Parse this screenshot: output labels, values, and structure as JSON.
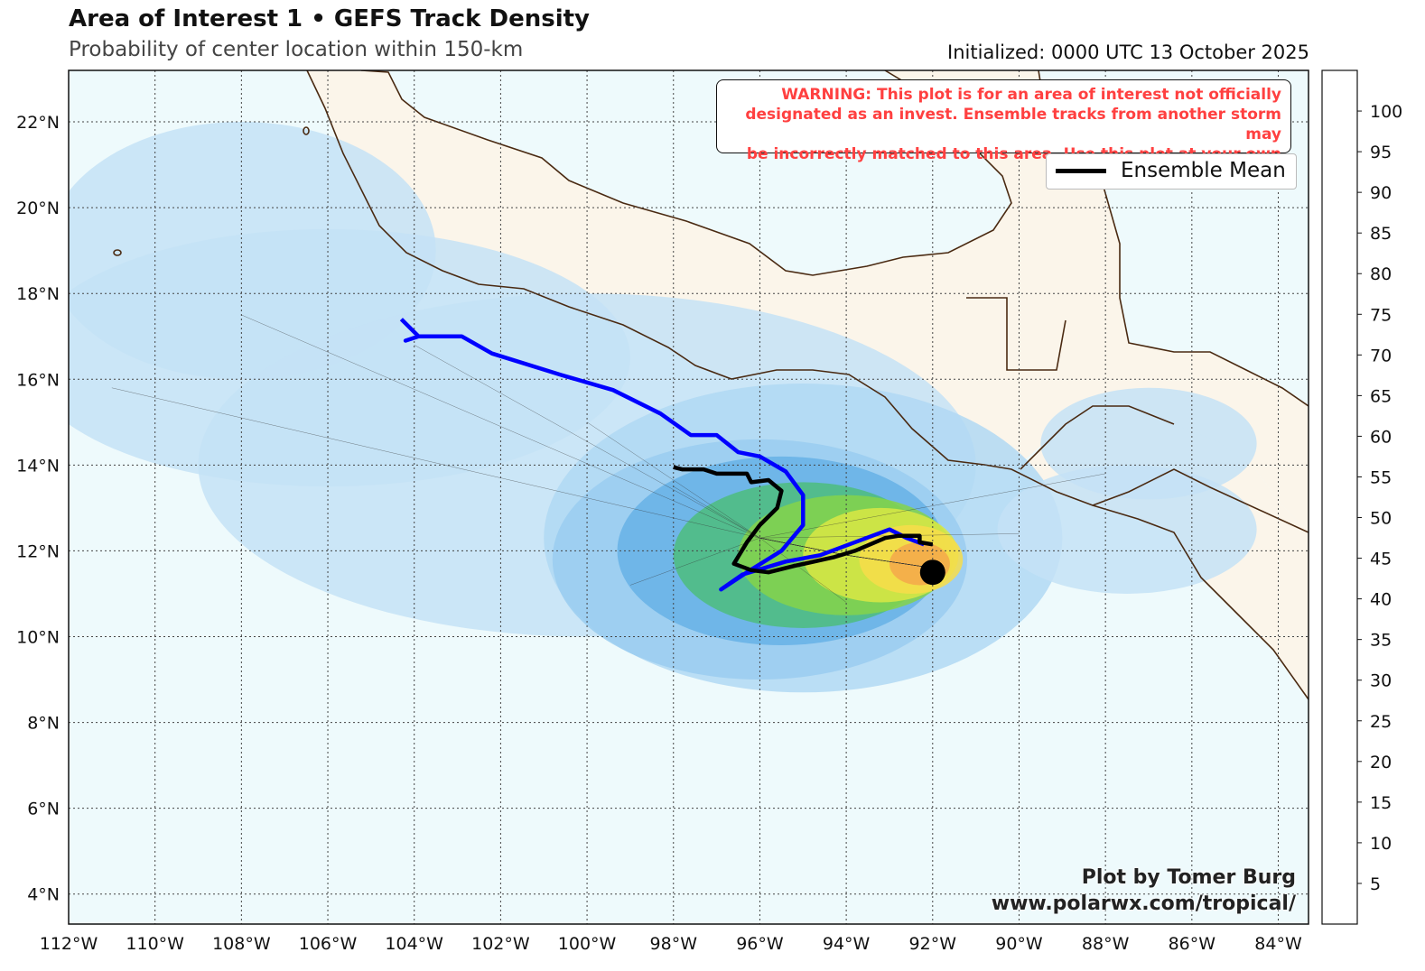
{
  "header": {
    "title": "Area of Interest 1 • GEFS Track Density",
    "subtitle": "Probability of center location within 150-km",
    "initialized": "Initialized: 0000 UTC 13 October 2025"
  },
  "warning": {
    "line1": "WARNING: This plot is for an area of interest not officially",
    "line2": "designated as an invest. Ensemble tracks from another storm may",
    "line3": "be incorrectly matched to this area. Use this plot at your own risk."
  },
  "legend": {
    "ensemble_mean_label": "Ensemble Mean"
  },
  "credit": {
    "line1": "Plot by Tomer Burg",
    "line2": "www.polarwx.com/tropical/"
  },
  "map": {
    "lon_range": [
      -112,
      -83.3
    ],
    "lat_range": [
      3.3,
      23.2
    ],
    "lon_ticks": [
      -112,
      -110,
      -108,
      -106,
      -104,
      -102,
      -100,
      -98,
      -96,
      -94,
      -92,
      -90,
      -88,
      -86,
      -84
    ],
    "lon_tick_labels": [
      "112°W",
      "110°W",
      "108°W",
      "106°W",
      "104°W",
      "102°W",
      "100°W",
      "98°W",
      "96°W",
      "94°W",
      "92°W",
      "90°W",
      "88°W",
      "86°W",
      "84°W"
    ],
    "lat_ticks": [
      4,
      6,
      8,
      10,
      12,
      14,
      16,
      18,
      20,
      22
    ],
    "lat_tick_labels": [
      "4°N",
      "6°N",
      "8°N",
      "10°N",
      "12°N",
      "14°N",
      "16°N",
      "18°N",
      "20°N",
      "22°N"
    ],
    "colors": {
      "ocean": "#eefafc",
      "land": "#fbf5ea",
      "coast": "#4a2a12",
      "grid": "#444444",
      "mean_track": "#000000",
      "op_track": "#0000ff"
    },
    "initial_position": {
      "lon": -92.0,
      "lat": 11.5
    },
    "ensemble_mean_track": [
      [
        -92.0,
        12.15
      ],
      [
        -92.3,
        12.2
      ],
      [
        -92.3,
        12.35
      ],
      [
        -92.8,
        12.35
      ],
      [
        -93.1,
        12.3
      ],
      [
        -93.8,
        12.0
      ],
      [
        -94.3,
        11.85
      ],
      [
        -95.2,
        11.65
      ],
      [
        -95.8,
        11.5
      ],
      [
        -96.2,
        11.55
      ],
      [
        -96.6,
        11.7
      ],
      [
        -96.3,
        12.2
      ],
      [
        -96.0,
        12.6
      ],
      [
        -95.6,
        13.0
      ],
      [
        -95.5,
        13.4
      ],
      [
        -95.8,
        13.65
      ],
      [
        -96.2,
        13.6
      ],
      [
        -96.3,
        13.8
      ],
      [
        -97.0,
        13.8
      ],
      [
        -97.3,
        13.9
      ],
      [
        -97.8,
        13.9
      ],
      [
        -98.0,
        13.95
      ]
    ],
    "operational_track": [
      [
        -92.2,
        12.15
      ],
      [
        -92.6,
        12.3
      ],
      [
        -93.0,
        12.5
      ],
      [
        -93.4,
        12.35
      ],
      [
        -94.6,
        11.9
      ],
      [
        -95.4,
        11.75
      ],
      [
        -96.4,
        11.45
      ],
      [
        -96.9,
        11.1
      ],
      [
        -96.3,
        11.5
      ],
      [
        -95.5,
        12.0
      ],
      [
        -95.0,
        12.6
      ],
      [
        -95.0,
        13.3
      ],
      [
        -95.4,
        13.85
      ],
      [
        -96.0,
        14.2
      ],
      [
        -96.5,
        14.3
      ],
      [
        -97.0,
        14.7
      ],
      [
        -97.6,
        14.7
      ],
      [
        -98.3,
        15.2
      ],
      [
        -99.4,
        15.75
      ],
      [
        -100.6,
        16.1
      ],
      [
        -102.2,
        16.6
      ],
      [
        -102.9,
        17.0
      ],
      [
        -103.9,
        17.0
      ],
      [
        -104.2,
        16.9
      ],
      [
        -103.9,
        17.0
      ],
      [
        -104.3,
        17.4
      ]
    ]
  },
  "colorbar": {
    "tick_labels": [
      "5",
      "10",
      "15",
      "20",
      "25",
      "30",
      "35",
      "40",
      "45",
      "50",
      "55",
      "60",
      "65",
      "70",
      "75",
      "80",
      "85",
      "90",
      "95",
      "100"
    ],
    "bin_colors": [
      "#d4e9f8",
      "#c4e2f6",
      "#b0d8f3",
      "#9acdf0",
      "#7ebfea",
      "#66b1e6",
      "#4ca3e0",
      "#4dada4",
      "#4dbd7d",
      "#55c953",
      "#85d44a",
      "#b1dd47",
      "#d9e844",
      "#f5f44a",
      "#f7dd4a",
      "#f6c24a",
      "#f5a84a",
      "#f38d48",
      "#f1723f",
      "#ef5448",
      "#ee4a4a"
    ]
  },
  "density_blobs": [
    {
      "lon": -108.0,
      "lat": 19.0,
      "rx": 4.5,
      "ry": 3.0,
      "level": 1
    },
    {
      "lon": -106.0,
      "lat": 16.5,
      "rx": 7.0,
      "ry": 3.0,
      "level": 1
    },
    {
      "lon": -100.0,
      "lat": 14.0,
      "rx": 9.0,
      "ry": 4.0,
      "level": 1
    },
    {
      "lon": -95.0,
      "lat": 12.3,
      "rx": 6.0,
      "ry": 3.6,
      "level": 2
    },
    {
      "lon": -96.0,
      "lat": 11.8,
      "rx": 4.8,
      "ry": 2.8,
      "level": 3
    },
    {
      "lon": -95.5,
      "lat": 12.0,
      "rx": 3.8,
      "ry": 2.2,
      "level": 5
    },
    {
      "lon": -95.0,
      "lat": 11.9,
      "rx": 3.0,
      "ry": 1.7,
      "level": 8
    },
    {
      "lon": -94.0,
      "lat": 11.9,
      "rx": 2.5,
      "ry": 1.4,
      "level": 10
    },
    {
      "lon": -93.2,
      "lat": 11.9,
      "rx": 1.8,
      "ry": 1.1,
      "level": 12
    },
    {
      "lon": -92.5,
      "lat": 11.8,
      "rx": 1.2,
      "ry": 0.8,
      "level": 14
    },
    {
      "lon": -92.3,
      "lat": 11.7,
      "rx": 0.7,
      "ry": 0.5,
      "level": 16
    },
    {
      "lon": -87.5,
      "lat": 12.5,
      "rx": 3.0,
      "ry": 1.5,
      "level": 1
    },
    {
      "lon": -87.0,
      "lat": 14.5,
      "rx": 2.5,
      "ry": 1.3,
      "level": 1
    }
  ]
}
